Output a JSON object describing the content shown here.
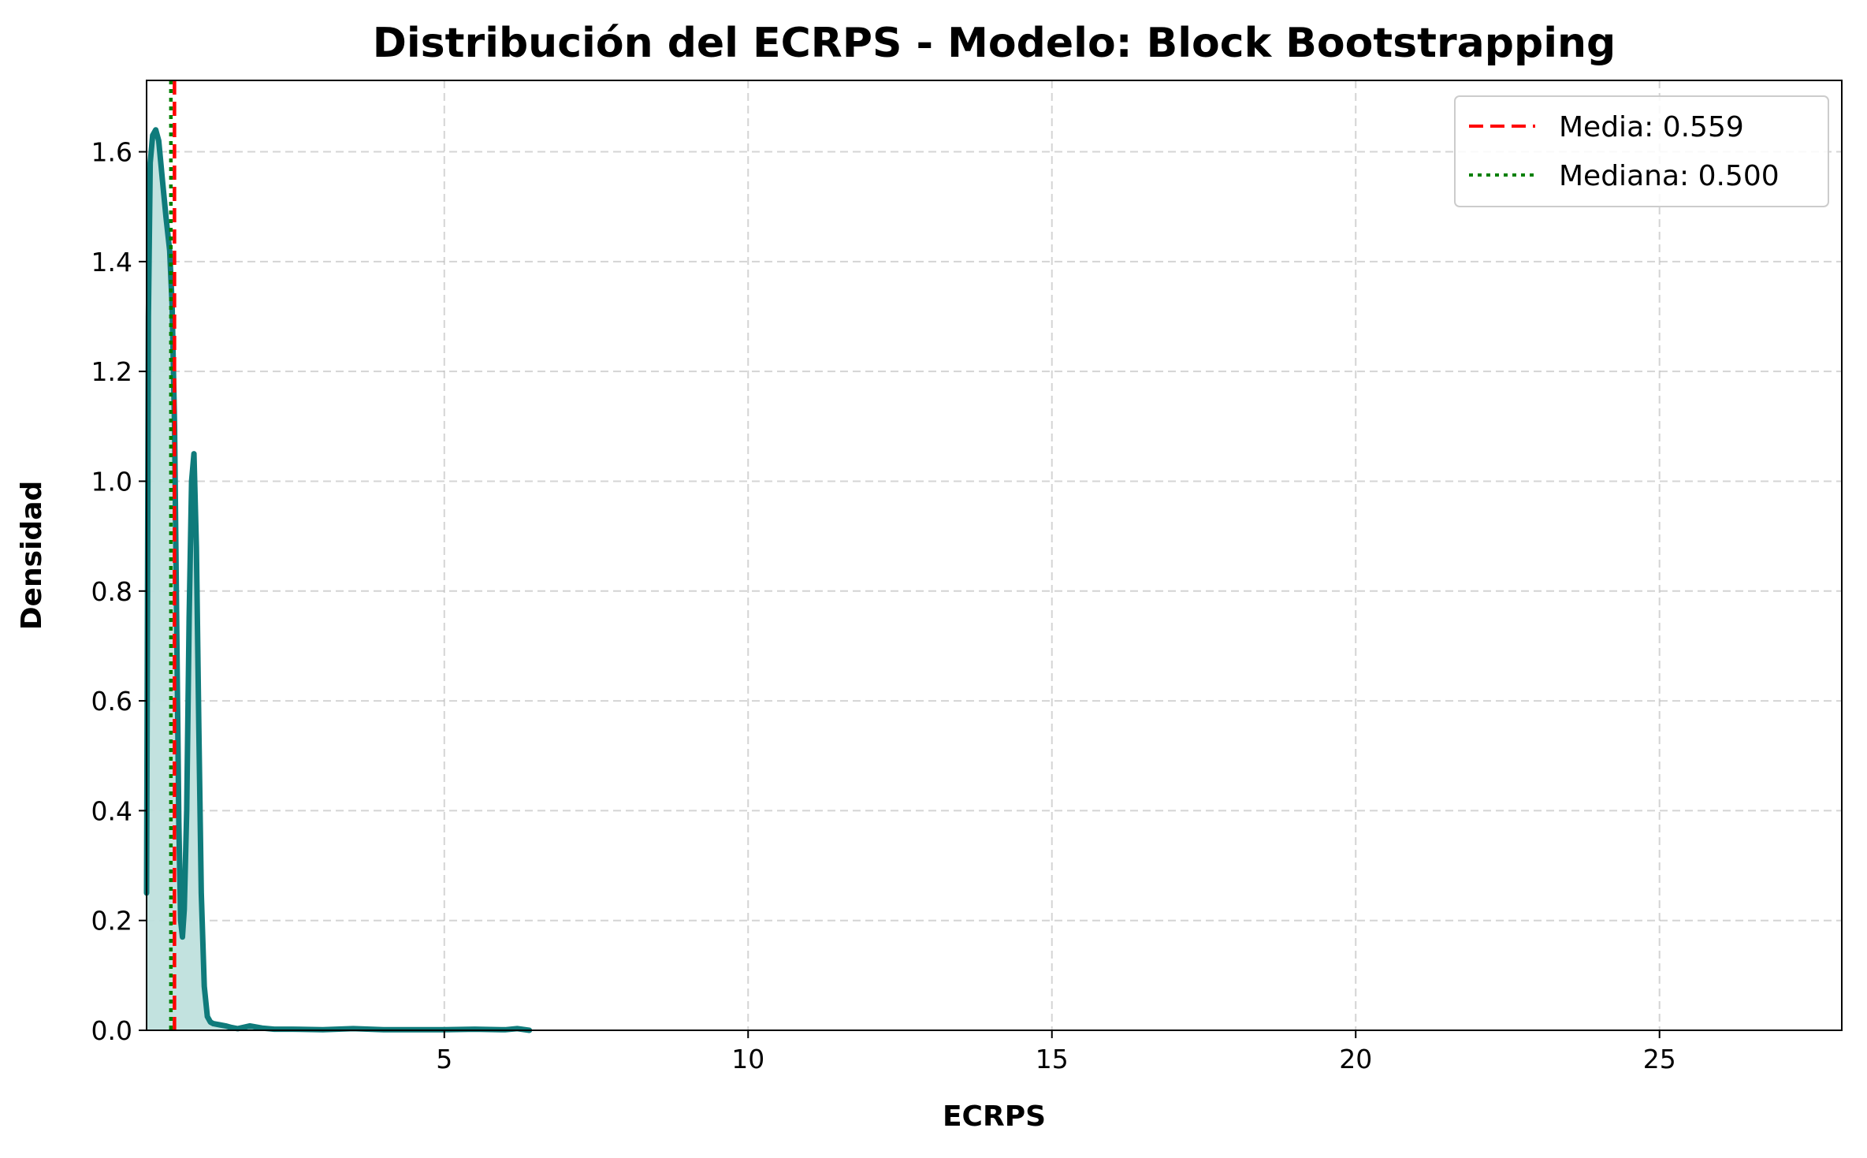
{
  "chart_data": {
    "type": "area",
    "title": "Distribución del ECRPS - Modelo: Block Bootstrapping",
    "xlabel": "ECRPS",
    "ylabel": "Densidad",
    "xlim": [
      0.1,
      28.0
    ],
    "ylim": [
      0.0,
      1.73
    ],
    "xticks": [
      5,
      10,
      15,
      20,
      25
    ],
    "xtick_labels": [
      "5",
      "10",
      "15",
      "20",
      "25"
    ],
    "yticks": [
      0.0,
      0.2,
      0.4,
      0.6,
      0.8,
      1.0,
      1.2,
      1.4,
      1.6
    ],
    "ytick_labels": [
      "0.0",
      "0.2",
      "0.4",
      "0.6",
      "0.8",
      "1.0",
      "1.2",
      "1.4",
      "1.6"
    ],
    "grid": true,
    "legend_position": "top-right",
    "series": [
      {
        "kind": "kde",
        "color": "#0f7b7b",
        "fill_color": "#bfe0dd",
        "x": [
          0.1,
          0.13,
          0.16,
          0.2,
          0.25,
          0.3,
          0.36,
          0.42,
          0.48,
          0.52,
          0.56,
          0.6,
          0.63,
          0.66,
          0.69,
          0.72,
          0.76,
          0.8,
          0.84,
          0.88,
          0.92,
          0.96,
          1.0,
          1.05,
          1.1,
          1.15,
          1.2,
          1.3,
          1.4,
          1.5,
          1.6,
          1.8,
          2.0,
          2.2,
          2.5,
          3.0,
          3.5,
          4.0,
          4.5,
          5.0,
          5.5,
          6.0,
          6.2,
          6.4
        ],
        "y": [
          0.25,
          1.3,
          1.58,
          1.63,
          1.64,
          1.62,
          1.55,
          1.48,
          1.42,
          1.32,
          1.1,
          0.7,
          0.38,
          0.2,
          0.17,
          0.22,
          0.4,
          0.75,
          1.0,
          1.05,
          0.88,
          0.55,
          0.25,
          0.08,
          0.025,
          0.015,
          0.012,
          0.01,
          0.008,
          0.005,
          0.003,
          0.008,
          0.004,
          0.002,
          0.002,
          0.001,
          0.003,
          0.001,
          0.001,
          0.001,
          0.002,
          0.001,
          0.003,
          0.0
        ]
      }
    ],
    "reference_lines": [
      {
        "name": "Media: 0.559",
        "x": 0.559,
        "color": "#ff0000",
        "style": "dashed"
      },
      {
        "name": "Mediana: 0.500",
        "x": 0.5,
        "color": "#008000",
        "style": "dotted"
      }
    ]
  }
}
